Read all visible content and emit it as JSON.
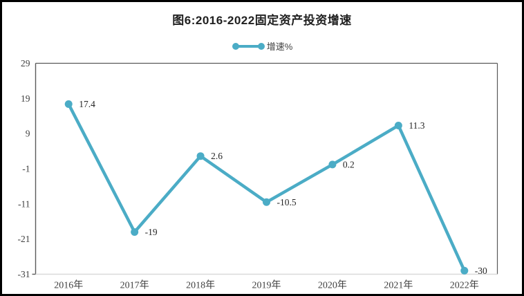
{
  "title": "图6:2016-2022固定资产投资增速",
  "legend": {
    "label": "增速%"
  },
  "colors": {
    "line": "#4BACC6",
    "title": "#1f1f1f",
    "tick_label": "#404040",
    "data_label": "#262626",
    "frame": "#595959",
    "baseline": "#d9d9d9",
    "outer_border": "#000000"
  },
  "chart_data": {
    "type": "line",
    "title": "图6:2016-2022固定资产投资增速",
    "series_name": "增速%",
    "categories": [
      "2016年",
      "2017年",
      "2018年",
      "2019年",
      "2020年",
      "2021年",
      "2022年"
    ],
    "values": [
      17.4,
      -19,
      2.6,
      -10.5,
      0.2,
      11.3,
      -30
    ],
    "data_labels": [
      "17.4",
      "-19",
      "2.6",
      "-10.5",
      "0.2",
      "11.3",
      "-30"
    ],
    "yticks": [
      29,
      19,
      9,
      -1,
      -11,
      -21,
      -31
    ],
    "ylim": [
      -31,
      29
    ],
    "xlabel": "",
    "ylabel": "",
    "grid": false,
    "legend_position": "top-center",
    "marker": "circle",
    "data_label_position": "right-of-point"
  }
}
